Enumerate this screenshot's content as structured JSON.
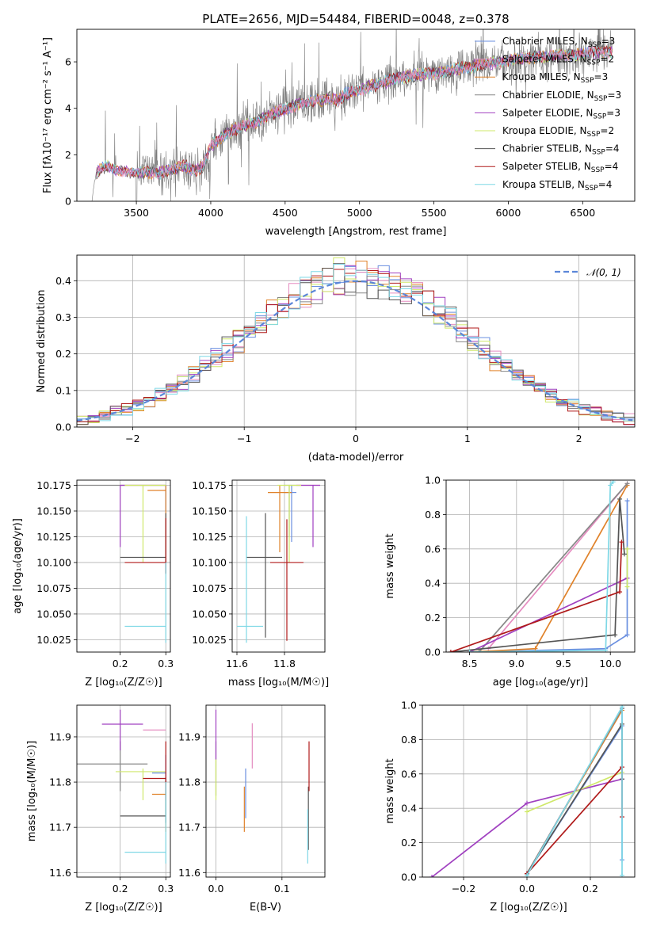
{
  "title": "PLATE=2656, MJD=54484, FIBERID=0048, z=0.378",
  "colors": {
    "chabrier_miles": "#6a8fe0",
    "salpeter_miles": "#e58cc0",
    "kroupa_miles": "#e0822a",
    "chabrier_elodie": "#888888",
    "salpeter_elodie": "#a040c0",
    "kroupa_elodie": "#cfe86a",
    "chabrier_stelib": "#555555",
    "salpeter_stelib": "#b01a1a",
    "kroupa_stelib": "#7fd8e6",
    "normal": "#5b86d8",
    "grid": "#b0b0b0"
  },
  "chart_data": [
    {
      "id": "spectrum",
      "type": "line",
      "title": "PLATE=2656, MJD=54484, FIBERID=0048, z=0.378",
      "xlabel": "wavelength [Angstrom, rest frame]",
      "ylabel": "Flux [f$_\\lambda$10$^{-17}$ erg cm$^{-2}$ s$^{-1}$ A$^{-1}$]",
      "ylabel_text": "Flux [fλ10⁻¹⁷ erg cm⁻² s⁻¹ A⁻¹]",
      "xlim": [
        3100,
        6850
      ],
      "ylim": [
        0,
        7.4
      ],
      "xticks": [
        3500,
        4000,
        4500,
        5000,
        5500,
        6000,
        6500
      ],
      "yticks": [
        0,
        2,
        4,
        6
      ],
      "grid": false,
      "legend_position": "upper right",
      "legend": [
        {
          "label": "Chabrier MILES, N",
          "sub": "SSP",
          "suffix": "=3",
          "color": "chabrier_miles"
        },
        {
          "label": "Salpeter MILES, N",
          "sub": "SSP",
          "suffix": "=2",
          "color": "salpeter_miles"
        },
        {
          "label": "Kroupa MILES, N",
          "sub": "SSP",
          "suffix": "=3",
          "color": "kroupa_miles"
        },
        {
          "label": "Chabrier ELODIE, N",
          "sub": "SSP",
          "suffix": "=3",
          "color": "chabrier_elodie"
        },
        {
          "label": "Salpeter ELODIE, N",
          "sub": "SSP",
          "suffix": "=3",
          "color": "salpeter_elodie"
        },
        {
          "label": "Kroupa ELODIE, N",
          "sub": "SSP",
          "suffix": "=2",
          "color": "kroupa_elodie"
        },
        {
          "label": "Chabrier STELIB, N",
          "sub": "SSP",
          "suffix": "=4",
          "color": "chabrier_stelib"
        },
        {
          "label": "Salpeter STELIB, N",
          "sub": "SSP",
          "suffix": "=4",
          "color": "salpeter_stelib"
        },
        {
          "label": "Kroupa STELIB, N",
          "sub": "SSP",
          "suffix": "=4",
          "color": "kroupa_stelib"
        }
      ],
      "continuum_model": {
        "x": [
          3200,
          3230,
          3260,
          3290,
          3320,
          3350,
          3400,
          3450,
          3500,
          3550,
          3600,
          3650,
          3700,
          3750,
          3800,
          3850,
          3900,
          3950,
          4000,
          4100,
          4200,
          4300,
          4400,
          4500,
          4600,
          4700,
          4800,
          4860,
          4900,
          5000,
          5100,
          5200,
          5300,
          5400,
          5500,
          5600,
          5700,
          5800,
          5900,
          6000,
          6100,
          6200,
          6300,
          6400,
          6500,
          6600,
          6700
        ],
        "y": [
          0.0,
          1.25,
          1.35,
          1.5,
          1.5,
          1.35,
          1.3,
          1.2,
          1.25,
          1.2,
          1.25,
          1.2,
          1.3,
          1.35,
          1.55,
          1.45,
          1.3,
          1.5,
          2.4,
          2.9,
          3.2,
          3.4,
          3.75,
          3.95,
          4.2,
          4.3,
          4.45,
          4.3,
          4.6,
          4.8,
          5.0,
          5.2,
          5.35,
          5.45,
          5.5,
          5.6,
          5.75,
          5.85,
          5.95,
          6.05,
          6.15,
          6.2,
          6.25,
          6.3,
          6.35,
          6.4,
          6.45
        ]
      }
    },
    {
      "id": "residuals",
      "type": "line",
      "xlabel": "(data-model)/error",
      "ylabel": "Normed distribution",
      "xlim": [
        -2.5,
        2.5
      ],
      "ylim": [
        0,
        0.47
      ],
      "xticks": [
        -2,
        -1,
        0,
        1,
        2
      ],
      "yticks": [
        0.0,
        0.1,
        0.2,
        0.3,
        0.4
      ],
      "grid": true,
      "legend_position": "upper right",
      "legend": [
        {
          "label": "𝒩(0, 1)",
          "color": "normal",
          "style": "dashed"
        }
      ],
      "bin_width": 0.1
    },
    {
      "id": "age_vs_Z",
      "type": "scatter",
      "xlabel": "Z [log₁₀(Z/Z☉)]",
      "ylabel": "age  [log₁₀(age/yr)]",
      "xlim": [
        0.105,
        0.31
      ],
      "ylim": [
        10.013,
        10.18
      ],
      "xticks": [
        0.2,
        0.3
      ],
      "yticks": [
        10.025,
        10.05,
        10.075,
        10.1,
        10.125,
        10.15,
        10.175
      ],
      "grid": true,
      "points": [
        {
          "color": "chabrier_miles",
          "x": 0.3,
          "y": 10.175,
          "xerr": [
            0.3,
            0.3
          ],
          "yerr": [
            10.15,
            10.175
          ]
        },
        {
          "color": "salpeter_miles",
          "x": 0.25,
          "y": 10.175,
          "xerr": [
            0.2,
            0.3
          ],
          "yerr": [
            10.175,
            10.175
          ]
        },
        {
          "color": "kroupa_miles",
          "x": 0.3,
          "y": 10.17,
          "xerr": [
            0.26,
            0.3
          ],
          "yerr": [
            10.1,
            10.175
          ]
        },
        {
          "color": "chabrier_elodie",
          "x": 0.2,
          "y": 10.175,
          "xerr": [
            0.105,
            0.3
          ],
          "yerr": [
            10.175,
            10.175
          ]
        },
        {
          "color": "salpeter_elodie",
          "x": 0.2,
          "y": 10.175,
          "xerr": [
            0.2,
            0.21
          ],
          "yerr": [
            10.115,
            10.175
          ]
        },
        {
          "color": "kroupa_elodie",
          "x": 0.25,
          "y": 10.175,
          "xerr": [
            0.21,
            0.3
          ],
          "yerr": [
            10.1,
            10.175
          ]
        },
        {
          "color": "chabrier_stelib",
          "x": 0.3,
          "y": 10.105,
          "xerr": [
            0.2,
            0.3
          ],
          "yerr": [
            10.09,
            10.148
          ]
        },
        {
          "color": "salpeter_stelib",
          "x": 0.3,
          "y": 10.1,
          "xerr": [
            0.21,
            0.3
          ],
          "yerr": [
            10.089,
            10.143
          ]
        },
        {
          "color": "kroupa_stelib",
          "x": 0.3,
          "y": 10.038,
          "xerr": [
            0.21,
            0.3
          ],
          "yerr": [
            10.022,
            10.1
          ]
        }
      ]
    },
    {
      "id": "age_vs_mass",
      "type": "scatter",
      "xlabel": "mass [log₁₀(M/M☉)]",
      "ylabel": "",
      "xlim": [
        11.58,
        11.97
      ],
      "ylim": [
        10.013,
        10.18
      ],
      "xticks": [
        11.6,
        11.8
      ],
      "yticks": [
        10.025,
        10.05,
        10.075,
        10.1,
        10.125,
        10.15,
        10.175
      ],
      "grid": true,
      "points": [
        {
          "color": "chabrier_miles",
          "x": 11.83,
          "y": 10.168,
          "xerr": [
            11.8,
            11.85
          ],
          "yerr": [
            10.12,
            10.175
          ]
        },
        {
          "color": "salpeter_miles",
          "x": 11.92,
          "y": 10.175,
          "xerr": [
            11.85,
            11.95
          ],
          "yerr": [
            10.175,
            10.175
          ]
        },
        {
          "color": "kroupa_miles",
          "x": 11.78,
          "y": 10.168,
          "xerr": [
            11.73,
            11.83
          ],
          "yerr": [
            10.11,
            10.175
          ]
        },
        {
          "color": "chabrier_elodie",
          "x": 11.82,
          "y": 10.175,
          "xerr": [
            11.8,
            11.85
          ],
          "yerr": [
            10.125,
            10.175
          ]
        },
        {
          "color": "salpeter_elodie",
          "x": 11.92,
          "y": 10.175,
          "xerr": [
            11.85,
            11.95
          ],
          "yerr": [
            10.115,
            10.175
          ]
        },
        {
          "color": "kroupa_elodie",
          "x": 11.82,
          "y": 10.175,
          "xerr": [
            11.77,
            11.87
          ],
          "yerr": [
            10.1,
            10.175
          ]
        },
        {
          "color": "chabrier_stelib",
          "x": 11.72,
          "y": 10.105,
          "xerr": [
            11.64,
            11.79
          ],
          "yerr": [
            10.027,
            10.148
          ]
        },
        {
          "color": "salpeter_stelib",
          "x": 11.81,
          "y": 10.1,
          "xerr": [
            11.74,
            11.88
          ],
          "yerr": [
            10.024,
            10.142
          ]
        },
        {
          "color": "kroupa_stelib",
          "x": 11.64,
          "y": 10.038,
          "xerr": [
            11.6,
            11.71
          ],
          "yerr": [
            10.022,
            10.145
          ]
        }
      ]
    },
    {
      "id": "massweight_vs_age",
      "type": "line",
      "xlabel": "age  [log₁₀(age/yr)]",
      "ylabel": "mass weight",
      "xlim": [
        8.25,
        10.26
      ],
      "ylim": [
        0.0,
        1.0
      ],
      "xticks": [
        8.5,
        9.0,
        9.5,
        10.0
      ],
      "yticks": [
        0.0,
        0.2,
        0.4,
        0.6,
        0.8,
        1.0
      ],
      "grid": true,
      "series": [
        {
          "color": "chabrier_miles",
          "x": [
            8.5,
            9.95,
            10.18,
            10.18
          ],
          "y": [
            0.0,
            0.02,
            0.1,
            0.88
          ]
        },
        {
          "color": "salpeter_miles",
          "x": [
            8.7,
            10.18
          ],
          "y": [
            0.02,
            0.98
          ]
        },
        {
          "color": "kroupa_miles",
          "x": [
            8.5,
            9.2,
            10.18
          ],
          "y": [
            0.0,
            0.02,
            0.97
          ]
        },
        {
          "color": "chabrier_elodie",
          "x": [
            8.6,
            10.18
          ],
          "y": [
            0.0,
            0.98
          ]
        },
        {
          "color": "salpeter_elodie",
          "x": [
            8.5,
            10.18
          ],
          "y": [
            0.0,
            0.43
          ]
        },
        {
          "color": "kroupa_elodie",
          "x": [
            10.18,
            10.18
          ],
          "y": [
            0.38,
            0.6
          ]
        },
        {
          "color": "chabrier_stelib",
          "x": [
            8.3,
            10.05,
            10.1,
            10.15
          ],
          "y": [
            0.0,
            0.1,
            0.89,
            0.57
          ]
        },
        {
          "color": "salpeter_stelib",
          "x": [
            8.3,
            10.1,
            10.12
          ],
          "y": [
            0.0,
            0.35,
            0.64
          ]
        },
        {
          "color": "kroupa_stelib",
          "x": [
            8.5,
            9.95,
            10.0,
            10.03
          ],
          "y": [
            0.0,
            0.01,
            0.97,
            0.99
          ]
        }
      ]
    },
    {
      "id": "mass_vs_Z",
      "type": "scatter",
      "xlabel": "Z [log₁₀(Z/Z☉)]",
      "ylabel": "mass [log₁₀(M/M☉)]",
      "xlim": [
        0.105,
        0.31
      ],
      "ylim": [
        11.59,
        11.97
      ],
      "xticks": [
        0.2,
        0.3
      ],
      "yticks": [
        11.6,
        11.7,
        11.8,
        11.9
      ],
      "grid": true,
      "points": [
        {
          "color": "chabrier_miles",
          "x": 0.3,
          "y": 11.82,
          "xerr": [
            0.27,
            0.3
          ],
          "yerr": [
            11.77,
            11.86
          ]
        },
        {
          "color": "salpeter_miles",
          "x": 0.3,
          "y": 11.915,
          "xerr": [
            0.25,
            0.3
          ],
          "yerr": [
            11.915,
            11.915
          ]
        },
        {
          "color": "kroupa_miles",
          "x": 0.3,
          "y": 11.773,
          "xerr": [
            0.27,
            0.3
          ],
          "yerr": [
            11.69,
            11.8
          ]
        },
        {
          "color": "chabrier_elodie",
          "x": 0.2,
          "y": 11.84,
          "xerr": [
            0.105,
            0.26
          ],
          "yerr": [
            11.78,
            11.89
          ]
        },
        {
          "color": "salpeter_elodie",
          "x": 0.2,
          "y": 11.928,
          "xerr": [
            0.16,
            0.25
          ],
          "yerr": [
            11.87,
            11.96
          ]
        },
        {
          "color": "kroupa_elodie",
          "x": 0.25,
          "y": 11.823,
          "xerr": [
            0.19,
            0.3
          ],
          "yerr": [
            11.76,
            11.83
          ]
        },
        {
          "color": "chabrier_stelib",
          "x": 0.3,
          "y": 11.725,
          "xerr": [
            0.2,
            0.3
          ],
          "yerr": [
            11.71,
            11.81
          ]
        },
        {
          "color": "salpeter_stelib",
          "x": 0.3,
          "y": 11.808,
          "xerr": [
            0.25,
            0.3
          ],
          "yerr": [
            11.76,
            11.89
          ]
        },
        {
          "color": "kroupa_stelib",
          "x": 0.3,
          "y": 11.645,
          "xerr": [
            0.21,
            0.3
          ],
          "yerr": [
            11.62,
            11.8
          ]
        }
      ]
    },
    {
      "id": "mass_vs_ebv",
      "type": "scatter",
      "xlabel": "E(B-V)",
      "ylabel": "",
      "xlim": [
        -0.015,
        0.165
      ],
      "ylim": [
        11.59,
        11.97
      ],
      "xticks": [
        0.0,
        0.1
      ],
      "yticks": [
        11.6,
        11.7,
        11.8,
        11.9
      ],
      "grid": true,
      "points": [
        {
          "color": "chabrier_miles",
          "x": 0.045,
          "y": 11.78,
          "xerr": [
            0.045,
            0.045
          ],
          "yerr": [
            11.72,
            11.83
          ]
        },
        {
          "color": "salpeter_miles",
          "x": 0.055,
          "y": 11.88,
          "xerr": [
            0.055,
            0.055
          ],
          "yerr": [
            11.83,
            11.93
          ]
        },
        {
          "color": "kroupa_miles",
          "x": 0.043,
          "y": 11.75,
          "xerr": [
            0.043,
            0.043
          ],
          "yerr": [
            11.69,
            11.79
          ]
        },
        {
          "color": "chabrier_elodie",
          "x": 0.0,
          "y": 11.83,
          "xerr": [
            0.0,
            0.0
          ],
          "yerr": [
            11.77,
            11.89
          ]
        },
        {
          "color": "salpeter_elodie",
          "x": 0.0,
          "y": 11.9,
          "xerr": [
            0.0,
            0.0
          ],
          "yerr": [
            11.85,
            11.96
          ]
        },
        {
          "color": "kroupa_elodie",
          "x": 0.0,
          "y": 11.8,
          "xerr": [
            0.0,
            0.0
          ],
          "yerr": [
            11.76,
            11.85
          ]
        },
        {
          "color": "chabrier_stelib",
          "x": 0.14,
          "y": 11.72,
          "xerr": [
            0.14,
            0.14
          ],
          "yerr": [
            11.65,
            11.79
          ]
        },
        {
          "color": "salpeter_stelib",
          "x": 0.141,
          "y": 11.82,
          "xerr": [
            0.141,
            0.141
          ],
          "yerr": [
            11.78,
            11.89
          ]
        },
        {
          "color": "kroupa_stelib",
          "x": 0.139,
          "y": 11.66,
          "xerr": [
            0.139,
            0.139
          ],
          "yerr": [
            11.62,
            11.74
          ]
        }
      ]
    },
    {
      "id": "massweight_vs_Z",
      "type": "line",
      "xlabel": "Z [log₁₀(Z/Z☉)]",
      "ylabel": "mass weight",
      "xlim": [
        -0.33,
        0.34
      ],
      "ylim": [
        0.0,
        1.0
      ],
      "xticks": [
        -0.2,
        0.0,
        0.2
      ],
      "yticks": [
        0.0,
        0.2,
        0.4,
        0.6,
        0.8,
        1.0
      ],
      "grid": true,
      "series": [
        {
          "color": "chabrier_miles",
          "x": [
            0.0,
            0.3,
            0.3,
            0.3
          ],
          "y": [
            0.02,
            0.88,
            0.1,
            0.98
          ]
        },
        {
          "color": "salpeter_miles",
          "x": [
            0.0,
            0.3
          ],
          "y": [
            0.02,
            0.98
          ]
        },
        {
          "color": "kroupa_miles",
          "x": [
            0.0,
            0.3
          ],
          "y": [
            0.02,
            0.97
          ]
        },
        {
          "color": "chabrier_elodie",
          "x": [
            0.0,
            0.3
          ],
          "y": [
            0.02,
            0.98
          ]
        },
        {
          "color": "salpeter_elodie",
          "x": [
            -0.3,
            0.0,
            0.3
          ],
          "y": [
            0.0,
            0.43,
            0.57
          ]
        },
        {
          "color": "kroupa_elodie",
          "x": [
            0.0,
            0.3
          ],
          "y": [
            0.38,
            0.61
          ]
        },
        {
          "color": "chabrier_stelib",
          "x": [
            0.0,
            0.3,
            0.3
          ],
          "y": [
            0.02,
            0.89,
            0.57
          ]
        },
        {
          "color": "salpeter_stelib",
          "x": [
            0.0,
            0.3,
            0.3
          ],
          "y": [
            0.02,
            0.64,
            0.35
          ]
        },
        {
          "color": "kroupa_stelib",
          "x": [
            0.0,
            0.3,
            0.3
          ],
          "y": [
            0.01,
            0.99,
            0.01
          ]
        }
      ]
    }
  ]
}
